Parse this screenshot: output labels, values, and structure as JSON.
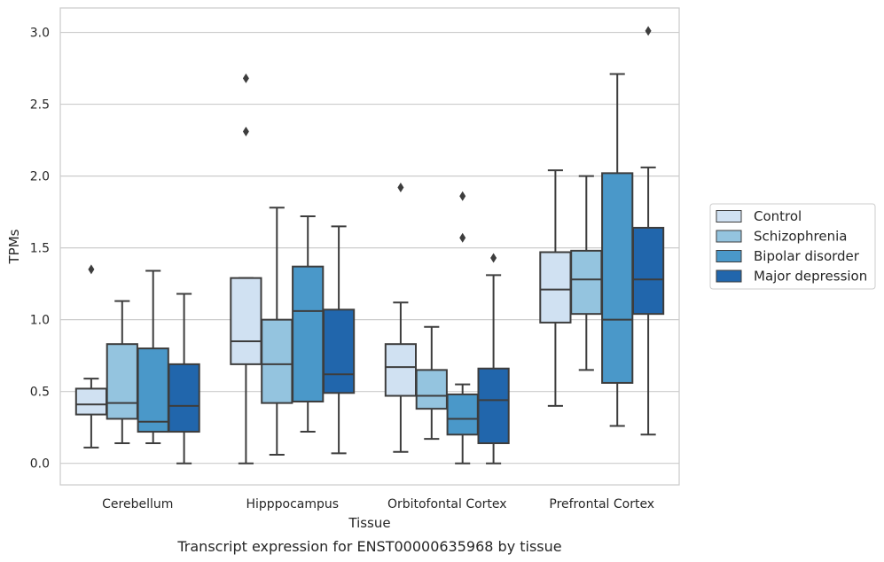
{
  "chart_data": {
    "type": "box",
    "caption": "Transcript expression for ENST00000635968 by tissue",
    "xlabel": "Tissue",
    "ylabel": "TPMs",
    "ylim": [
      -0.15,
      3.17
    ],
    "yticks": [
      "0.0",
      "0.5",
      "1.0",
      "1.5",
      "2.0",
      "2.5",
      "3.0"
    ],
    "grid": "horizontal",
    "legend_position": "right",
    "categories": [
      "Cerebellum",
      "Hipppocampus",
      "Orbitofontal Cortex",
      "Prefrontal Cortex"
    ],
    "series": [
      {
        "name": "Control",
        "color": "#d0e1f2",
        "boxes": [
          {
            "whisker_low": 0.11,
            "q1": 0.34,
            "median": 0.41,
            "q3": 0.52,
            "whisker_high": 0.59,
            "outliers": [
              1.35
            ]
          },
          {
            "whisker_low": 0.0,
            "q1": 0.69,
            "median": 0.85,
            "q3": 1.29,
            "whisker_high": 1.29,
            "outliers": [
              2.31,
              2.68
            ]
          },
          {
            "whisker_low": 0.08,
            "q1": 0.47,
            "median": 0.67,
            "q3": 0.83,
            "whisker_high": 1.12,
            "outliers": [
              1.92
            ]
          },
          {
            "whisker_low": 0.4,
            "q1": 0.98,
            "median": 1.21,
            "q3": 1.47,
            "whisker_high": 2.04,
            "outliers": []
          }
        ]
      },
      {
        "name": "Schizophrenia",
        "color": "#94c4df",
        "boxes": [
          {
            "whisker_low": 0.14,
            "q1": 0.31,
            "median": 0.42,
            "q3": 0.83,
            "whisker_high": 1.13,
            "outliers": []
          },
          {
            "whisker_low": 0.06,
            "q1": 0.42,
            "median": 0.69,
            "q3": 1.0,
            "whisker_high": 1.78,
            "outliers": []
          },
          {
            "whisker_low": 0.17,
            "q1": 0.38,
            "median": 0.47,
            "q3": 0.65,
            "whisker_high": 0.95,
            "outliers": []
          },
          {
            "whisker_low": 0.65,
            "q1": 1.04,
            "median": 1.28,
            "q3": 1.48,
            "whisker_high": 2.0,
            "outliers": []
          }
        ]
      },
      {
        "name": "Bipolar disorder",
        "color": "#4a98c9",
        "boxes": [
          {
            "whisker_low": 0.14,
            "q1": 0.22,
            "median": 0.29,
            "q3": 0.8,
            "whisker_high": 1.34,
            "outliers": []
          },
          {
            "whisker_low": 0.22,
            "q1": 0.43,
            "median": 1.06,
            "q3": 1.37,
            "whisker_high": 1.72,
            "outliers": []
          },
          {
            "whisker_low": 0.0,
            "q1": 0.2,
            "median": 0.31,
            "q3": 0.48,
            "whisker_high": 0.55,
            "outliers": [
              1.57,
              1.86
            ]
          },
          {
            "whisker_low": 0.26,
            "q1": 0.56,
            "median": 1.0,
            "q3": 2.02,
            "whisker_high": 2.71,
            "outliers": []
          }
        ]
      },
      {
        "name": "Major depression",
        "color": "#2166ac",
        "boxes": [
          {
            "whisker_low": 0.0,
            "q1": 0.22,
            "median": 0.4,
            "q3": 0.69,
            "whisker_high": 1.18,
            "outliers": []
          },
          {
            "whisker_low": 0.07,
            "q1": 0.49,
            "median": 0.62,
            "q3": 1.07,
            "whisker_high": 1.65,
            "outliers": []
          },
          {
            "whisker_low": 0.0,
            "q1": 0.14,
            "median": 0.44,
            "q3": 0.66,
            "whisker_high": 1.31,
            "outliers": [
              1.43
            ]
          },
          {
            "whisker_low": 0.2,
            "q1": 1.04,
            "median": 1.28,
            "q3": 1.64,
            "whisker_high": 2.06,
            "outliers": [
              3.01
            ]
          }
        ]
      }
    ]
  }
}
